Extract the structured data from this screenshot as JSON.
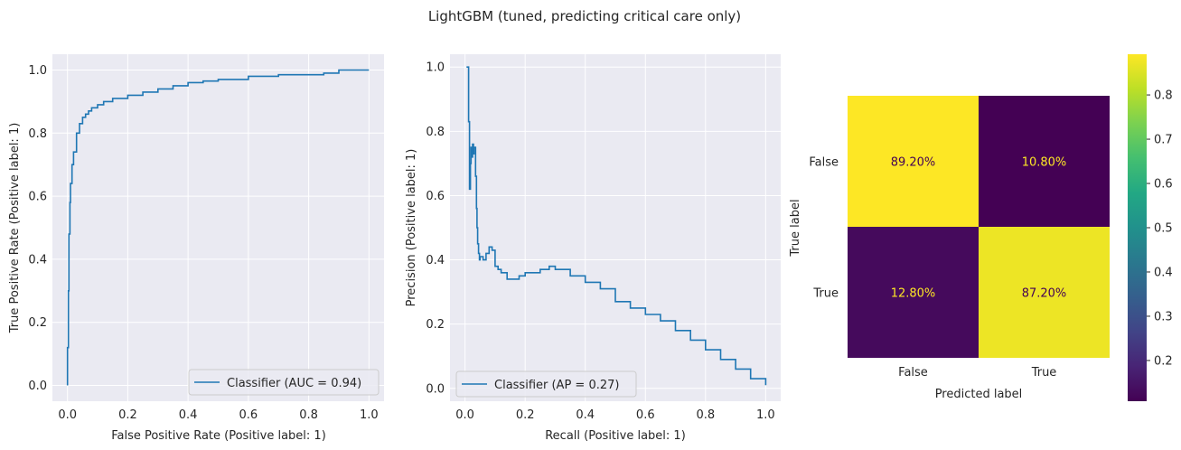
{
  "figure": {
    "suptitle": "LightGBM (tuned, predicting critical care only)"
  },
  "chart_data": [
    {
      "type": "line",
      "name": "roc",
      "xlabel": "False Positive Rate (Positive label: 1)",
      "ylabel": "True Positive Rate (Positive label: 1)",
      "xlim": [
        -0.05,
        1.05
      ],
      "ylim": [
        -0.05,
        1.05
      ],
      "xticks": [
        0.0,
        0.2,
        0.4,
        0.6,
        0.8,
        1.0
      ],
      "yticks": [
        0.0,
        0.2,
        0.4,
        0.6,
        0.8,
        1.0
      ],
      "tick_labels": [
        "0.0",
        "0.2",
        "0.4",
        "0.6",
        "0.8",
        "1.0"
      ],
      "grid": true,
      "legend": "lower-right",
      "series": [
        {
          "name": "Classifier (AUC = 0.94)",
          "color": "#1f77b4",
          "x": [
            0.0,
            0.0,
            0.003,
            0.005,
            0.008,
            0.01,
            0.015,
            0.02,
            0.03,
            0.04,
            0.05,
            0.06,
            0.07,
            0.08,
            0.1,
            0.12,
            0.15,
            0.2,
            0.25,
            0.3,
            0.35,
            0.4,
            0.45,
            0.5,
            0.6,
            0.7,
            0.8,
            0.85,
            0.9,
            1.0
          ],
          "y": [
            0.0,
            0.12,
            0.3,
            0.48,
            0.58,
            0.64,
            0.7,
            0.74,
            0.8,
            0.83,
            0.85,
            0.86,
            0.87,
            0.88,
            0.89,
            0.9,
            0.91,
            0.92,
            0.93,
            0.94,
            0.95,
            0.96,
            0.965,
            0.97,
            0.98,
            0.985,
            0.985,
            0.99,
            1.0,
            1.0
          ]
        }
      ]
    },
    {
      "type": "line",
      "name": "precision-recall",
      "xlabel": "Recall (Positive label: 1)",
      "ylabel": "Precision (Positive label: 1)",
      "xlim": [
        -0.05,
        1.05
      ],
      "ylim": [
        -0.04,
        1.04
      ],
      "xticks": [
        0.0,
        0.2,
        0.4,
        0.6,
        0.8,
        1.0
      ],
      "yticks": [
        0.0,
        0.2,
        0.4,
        0.6,
        0.8,
        1.0
      ],
      "tick_labels": [
        "0.0",
        "0.2",
        "0.4",
        "0.6",
        "0.8",
        "1.0"
      ],
      "grid": true,
      "legend": "lower-left",
      "series": [
        {
          "name": "Classifier (AP = 0.27)",
          "color": "#1f77b4",
          "x": [
            0.005,
            0.01,
            0.012,
            0.015,
            0.018,
            0.02,
            0.022,
            0.025,
            0.028,
            0.03,
            0.035,
            0.038,
            0.04,
            0.042,
            0.045,
            0.048,
            0.05,
            0.06,
            0.07,
            0.08,
            0.09,
            0.1,
            0.11,
            0.12,
            0.14,
            0.16,
            0.18,
            0.2,
            0.25,
            0.28,
            0.3,
            0.35,
            0.4,
            0.45,
            0.5,
            0.55,
            0.6,
            0.65,
            0.7,
            0.75,
            0.8,
            0.85,
            0.9,
            0.95,
            1.0
          ],
          "y": [
            1.0,
            1.0,
            0.83,
            0.62,
            0.7,
            0.75,
            0.72,
            0.76,
            0.73,
            0.75,
            0.66,
            0.56,
            0.5,
            0.45,
            0.42,
            0.4,
            0.41,
            0.4,
            0.42,
            0.44,
            0.43,
            0.38,
            0.37,
            0.36,
            0.34,
            0.34,
            0.35,
            0.36,
            0.37,
            0.38,
            0.37,
            0.35,
            0.33,
            0.31,
            0.27,
            0.25,
            0.23,
            0.21,
            0.18,
            0.15,
            0.12,
            0.09,
            0.06,
            0.03,
            0.01
          ]
        }
      ]
    },
    {
      "type": "heatmap",
      "name": "confusion-matrix",
      "xlabel": "Predicted label",
      "ylabel": "True label",
      "x_categories": [
        "False",
        "True"
      ],
      "y_categories": [
        "False",
        "True"
      ],
      "values": [
        [
          0.892,
          0.108
        ],
        [
          0.128,
          0.872
        ]
      ],
      "cell_labels": [
        [
          "89.20%",
          "10.80%"
        ],
        [
          "12.80%",
          "87.20%"
        ]
      ],
      "colormap": "viridis",
      "colorbar": {
        "min": 0.108,
        "max": 0.892,
        "ticks": [
          0.2,
          0.3,
          0.4,
          0.5,
          0.6,
          0.7,
          0.8
        ],
        "tick_labels": [
          "0.2",
          "0.3",
          "0.4",
          "0.5",
          "0.6",
          "0.7",
          "0.8"
        ]
      },
      "text_colors": {
        "on_dark": "#fde725",
        "on_light": "#440154"
      }
    }
  ]
}
